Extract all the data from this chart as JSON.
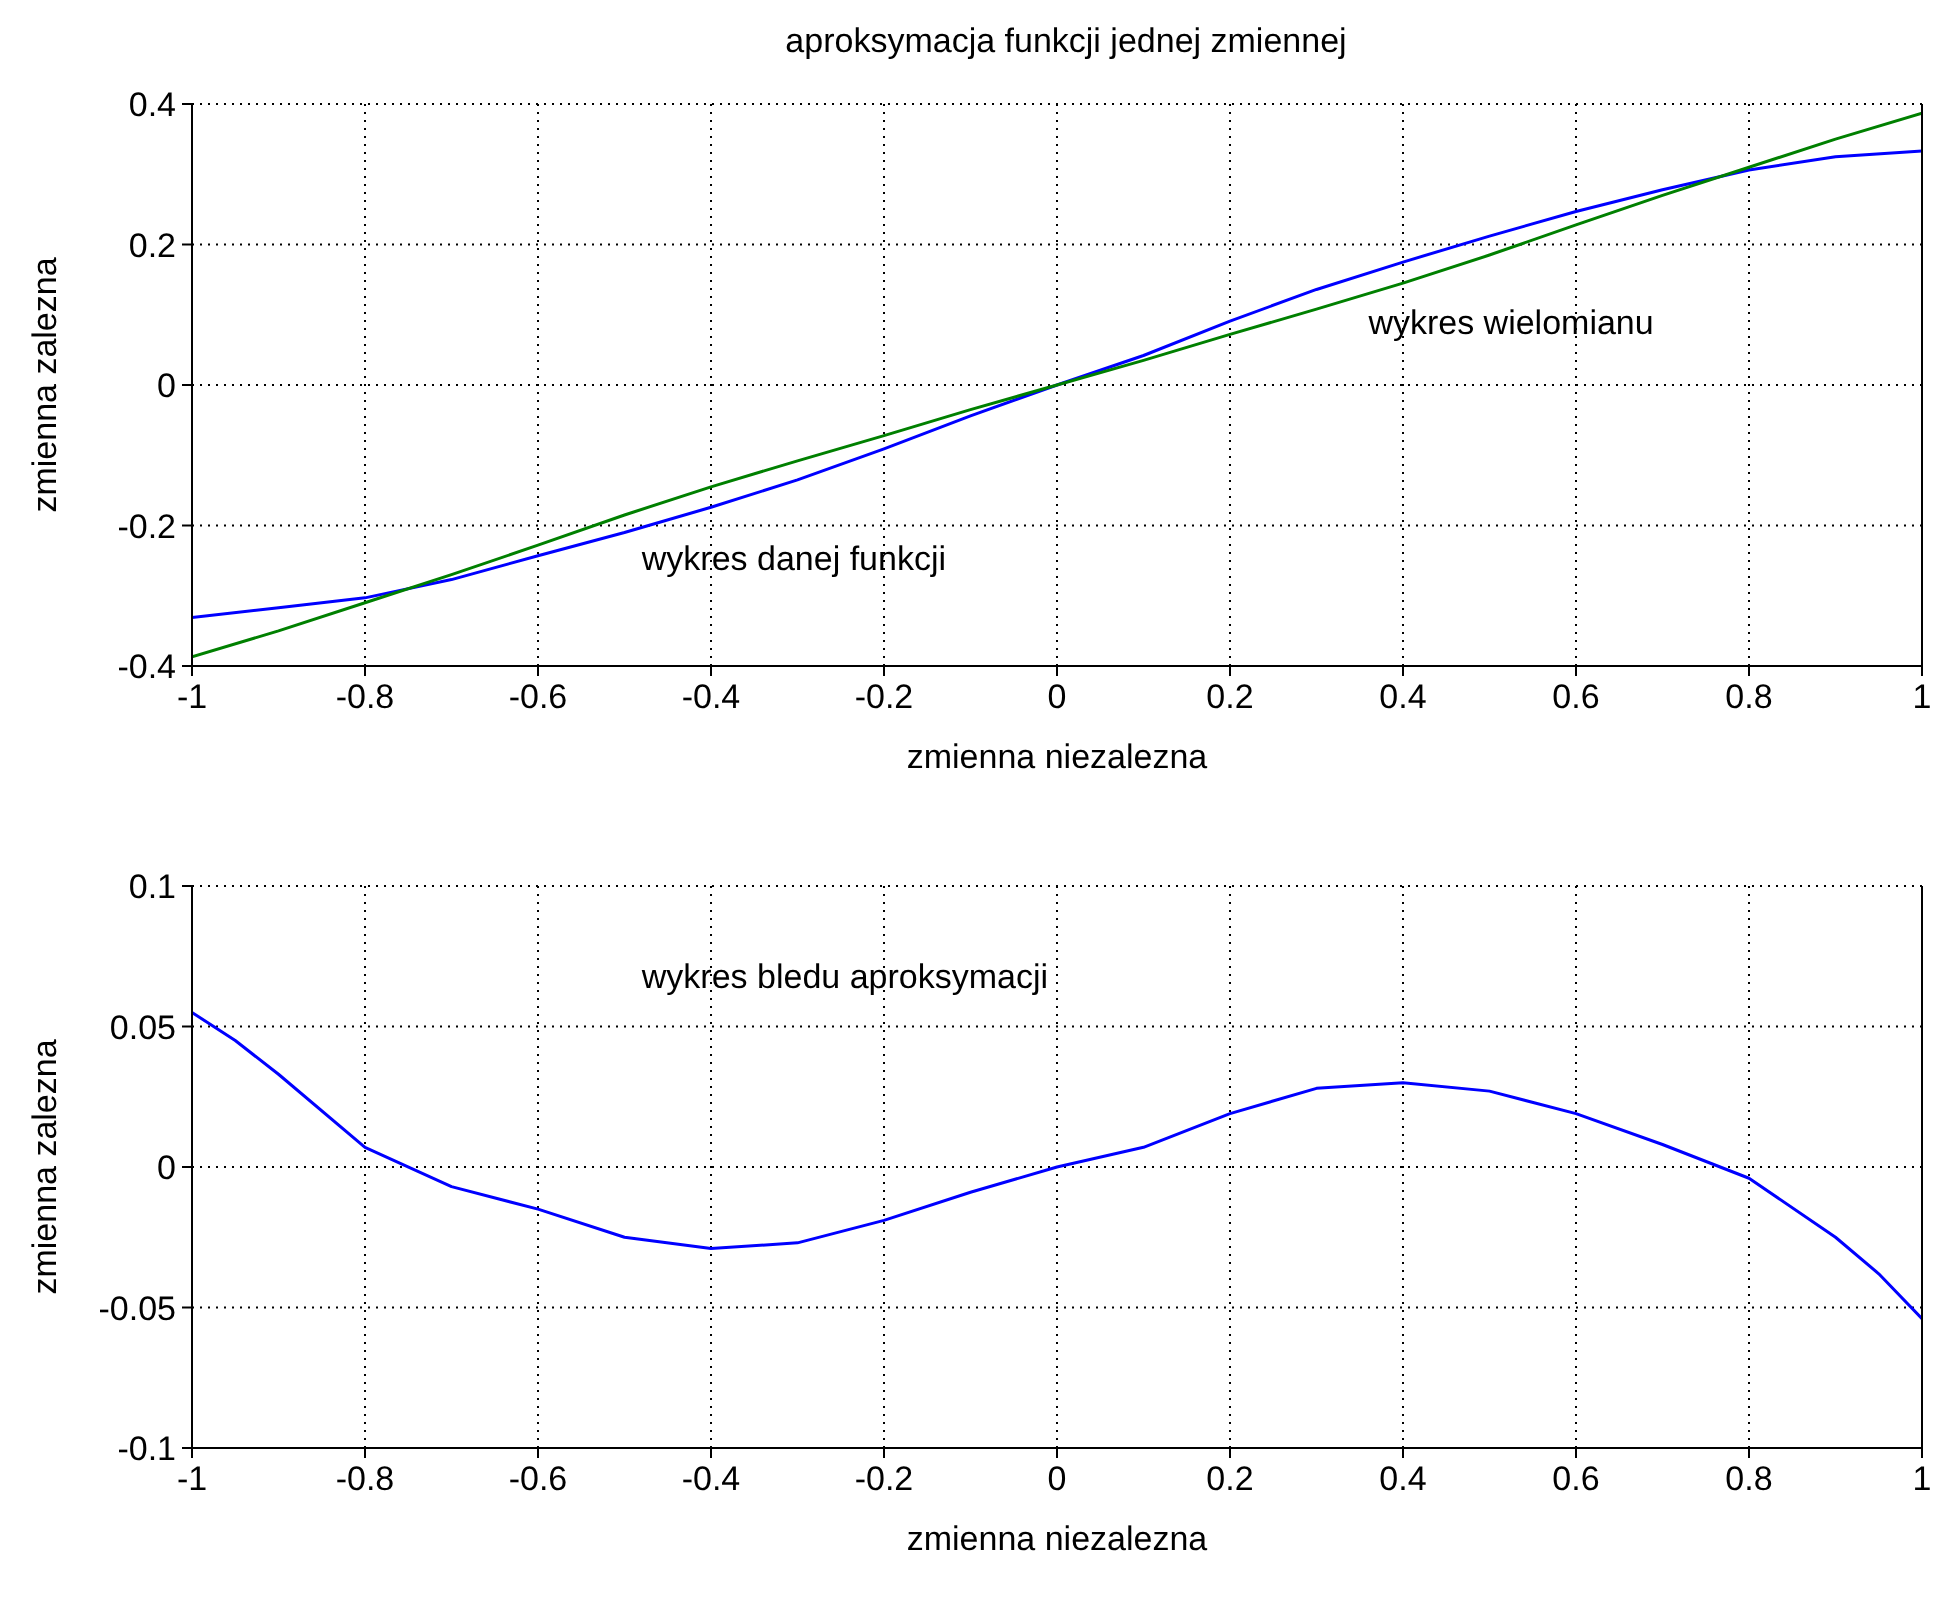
{
  "chart_data": [
    {
      "type": "line",
      "title": "aproksymacja funkcji jednej zmiennej",
      "xlabel": "zmienna niezalezna",
      "ylabel": "zmienna zalezna",
      "x": [
        -1,
        -0.9,
        -0.8,
        -0.7,
        -0.6,
        -0.5,
        -0.4,
        -0.3,
        -0.2,
        -0.1,
        0,
        0.1,
        0.2,
        0.3,
        0.4,
        0.5,
        0.6,
        0.7,
        0.8,
        0.9,
        1
      ],
      "series": [
        {
          "name": "wykres danej funkcji",
          "color": "#0000ff",
          "values": [
            -0.331,
            -0.317,
            -0.303,
            -0.277,
            -0.243,
            -0.21,
            -0.174,
            -0.135,
            -0.091,
            -0.044,
            0,
            0.042,
            0.091,
            0.136,
            0.175,
            0.212,
            0.247,
            0.278,
            0.306,
            0.325,
            0.333
          ]
        },
        {
          "name": "wykres wielomianu",
          "color": "#008000",
          "values": [
            -0.387,
            -0.35,
            -0.31,
            -0.27,
            -0.228,
            -0.185,
            -0.145,
            -0.108,
            -0.072,
            -0.035,
            0,
            0.035,
            0.072,
            0.108,
            0.145,
            0.185,
            0.228,
            0.27,
            0.31,
            0.35,
            0.387
          ]
        }
      ],
      "xlim": [
        -1,
        1
      ],
      "xticks": [
        -1,
        -0.8,
        -0.6,
        -0.4,
        -0.2,
        0,
        0.2,
        0.4,
        0.6,
        0.8,
        1
      ],
      "ylim": [
        -0.4,
        0.4
      ],
      "yticks": [
        -0.4,
        -0.2,
        0,
        0.2,
        0.4
      ],
      "grid": true,
      "legend": false
    },
    {
      "type": "line",
      "xlabel": "zmienna niezalezna",
      "ylabel": "zmienna zalezna",
      "x": [
        -1,
        -0.95,
        -0.9,
        -0.8,
        -0.7,
        -0.6,
        -0.5,
        -0.4,
        -0.3,
        -0.2,
        -0.1,
        0,
        0.1,
        0.2,
        0.3,
        0.4,
        0.5,
        0.6,
        0.7,
        0.8,
        0.9,
        0.95,
        1
      ],
      "series": [
        {
          "name": "wykres bledu aproksymacji",
          "color": "#0000ff",
          "values": [
            0.055,
            0.045,
            0.033,
            0.007,
            -0.007,
            -0.015,
            -0.025,
            -0.029,
            -0.027,
            -0.019,
            -0.009,
            0,
            0.007,
            0.019,
            0.028,
            0.03,
            0.027,
            0.019,
            0.008,
            -0.004,
            -0.025,
            -0.038,
            -0.054
          ]
        }
      ],
      "xlim": [
        -1,
        1
      ],
      "xticks": [
        -1,
        -0.8,
        -0.6,
        -0.4,
        -0.2,
        0,
        0.2,
        0.4,
        0.6,
        0.8,
        1
      ],
      "ylim": [
        -0.1,
        0.1
      ],
      "yticks": [
        -0.1,
        -0.05,
        0,
        0.05,
        0.1
      ],
      "grid": true,
      "legend": false
    }
  ]
}
